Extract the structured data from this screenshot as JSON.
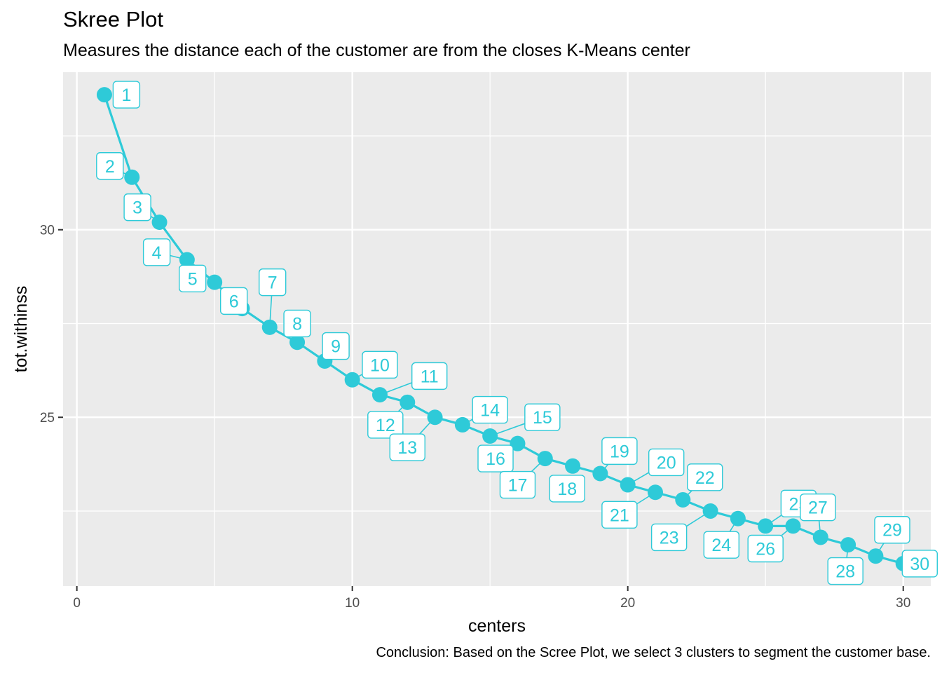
{
  "chart_data": {
    "type": "line",
    "title": "Skree Plot",
    "subtitle": "Measures the distance each of the customer are from the closes K-Means center",
    "caption": "Conclusion: Based on the Scree Plot, we select 3 clusters to segment the customer base.",
    "xlabel": "centers",
    "ylabel": "tot.withinss",
    "xlim": [
      -0.5,
      31.0
    ],
    "ylim": [
      20.5,
      34.2
    ],
    "xticks": [
      0,
      10,
      20,
      30
    ],
    "yticks": [
      25,
      30
    ],
    "xtick_labels": [
      "0",
      "10",
      "20",
      "30"
    ],
    "ytick_labels": [
      "25",
      "30"
    ],
    "grid": true,
    "series_color": "#2ECAD8",
    "panel_background": "#EBEBEB",
    "x": [
      1,
      2,
      3,
      4,
      5,
      6,
      7,
      8,
      9,
      10,
      11,
      12,
      13,
      14,
      15,
      16,
      17,
      18,
      19,
      20,
      21,
      22,
      23,
      24,
      25,
      26,
      27,
      28,
      29,
      30
    ],
    "values": [
      33.6,
      31.4,
      30.2,
      29.2,
      28.6,
      27.9,
      27.4,
      27.0,
      26.5,
      26.0,
      25.6,
      25.4,
      25.0,
      24.8,
      24.5,
      24.3,
      23.9,
      23.7,
      23.5,
      23.2,
      23.0,
      22.8,
      22.5,
      22.3,
      22.1,
      22.1,
      21.8,
      21.6,
      21.3,
      21.1
    ],
    "point_labels": [
      "1",
      "2",
      "3",
      "4",
      "5",
      "6",
      "7",
      "8",
      "9",
      "10",
      "11",
      "12",
      "13",
      "14",
      "15",
      "16",
      "17",
      "18",
      "19",
      "20",
      "21",
      "22",
      "23",
      "24",
      "25",
      "26",
      "27",
      "28",
      "29",
      "30"
    ]
  }
}
